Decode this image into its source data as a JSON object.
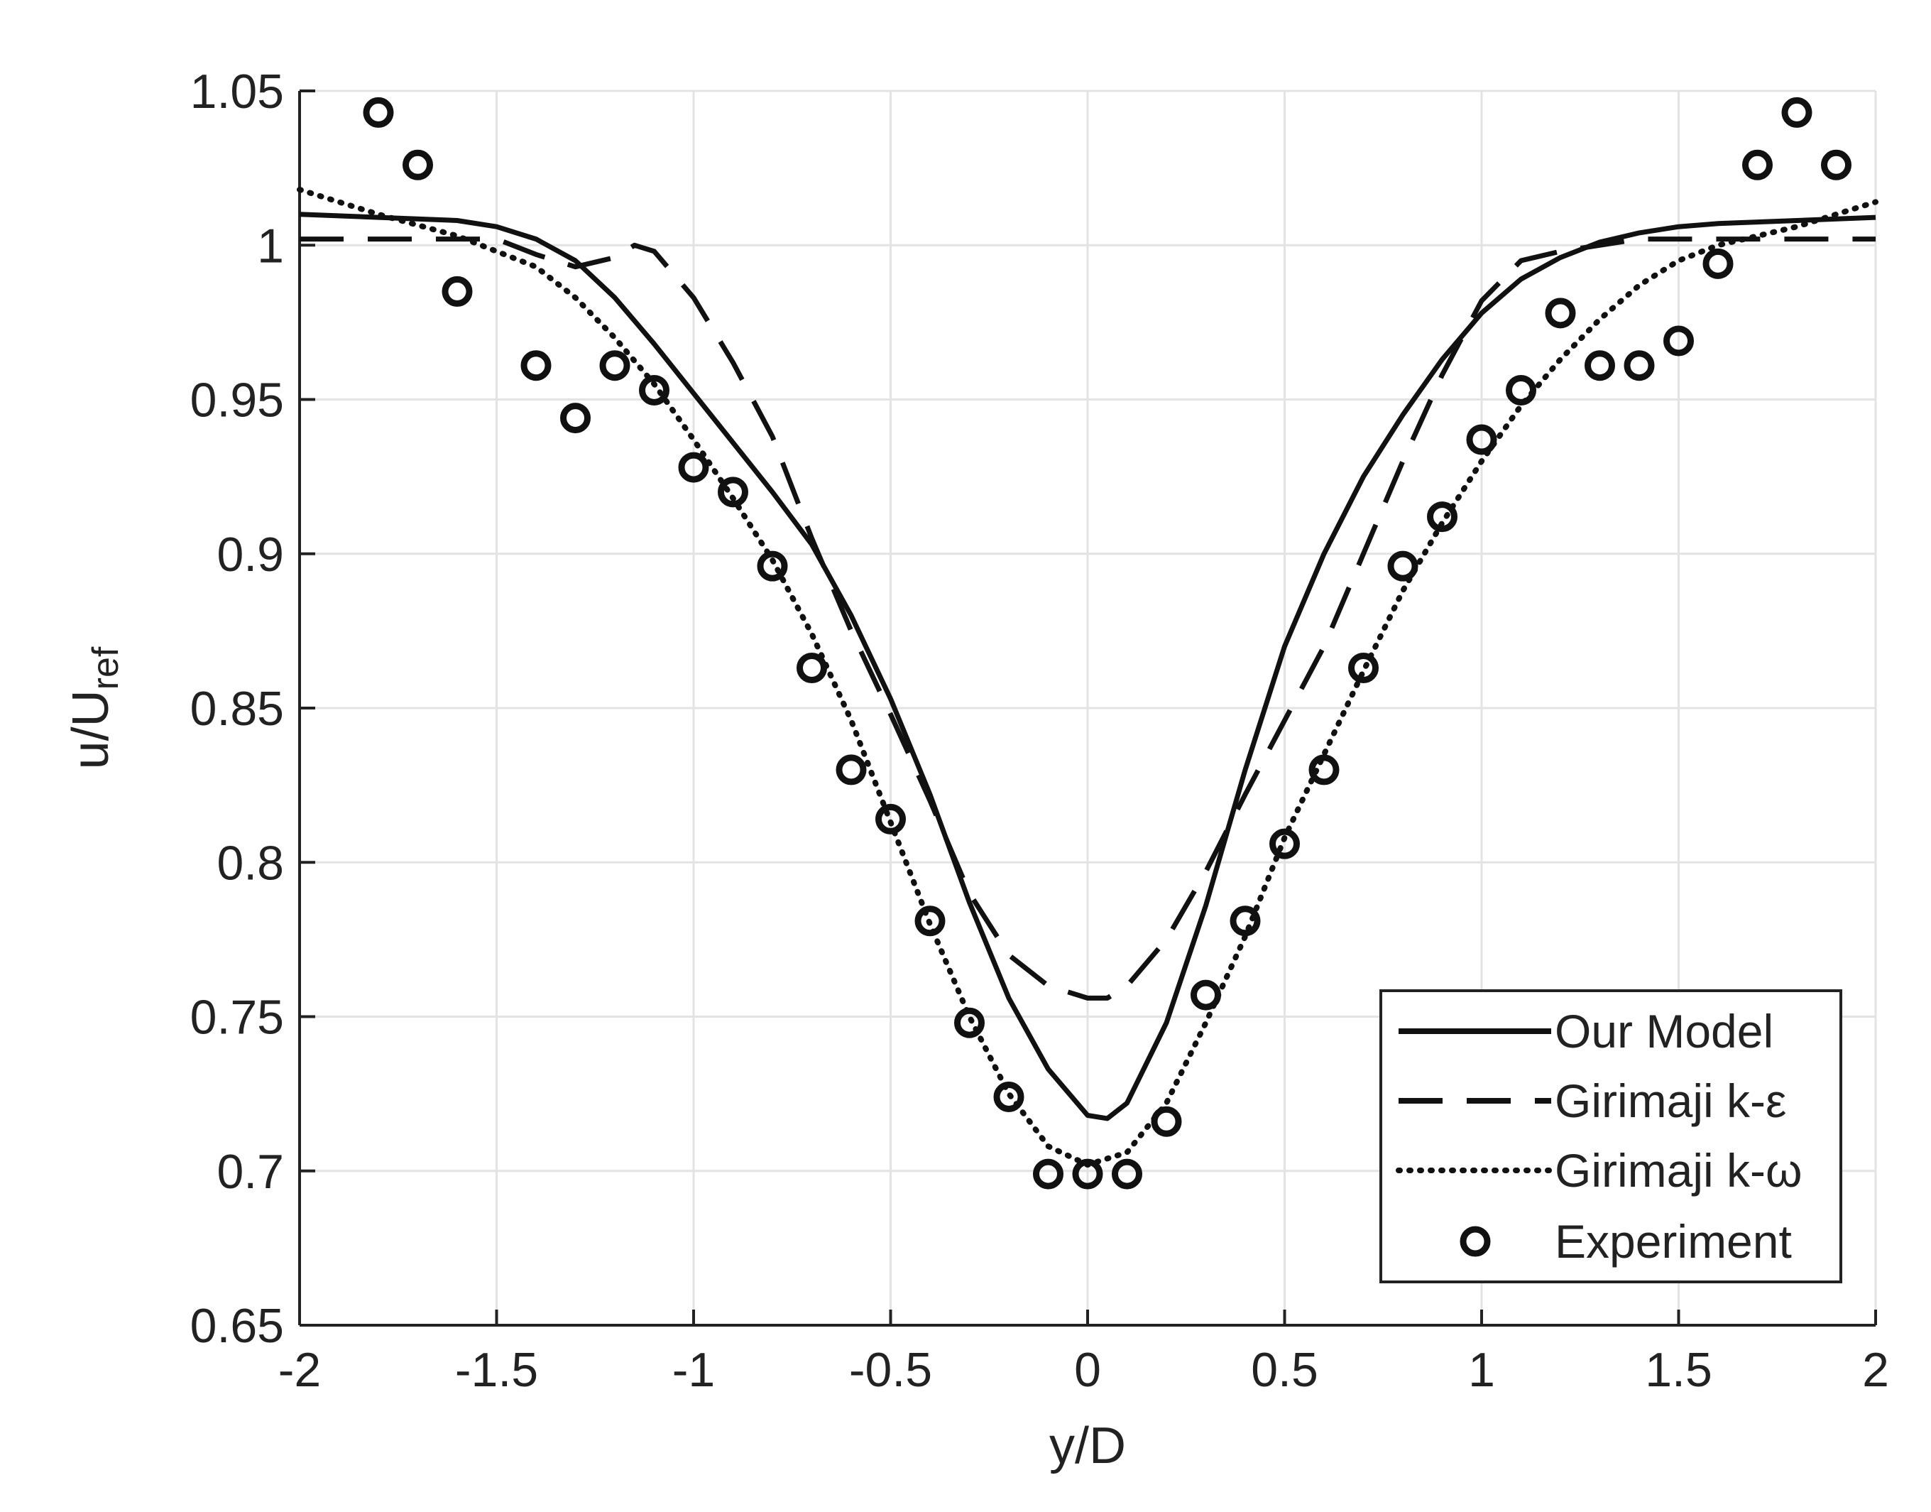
{
  "chart_data": {
    "type": "line",
    "title": "",
    "xlabel": "y/D",
    "ylabel": "u/U",
    "ylabel_subscript": "ref",
    "xlim": [
      -2,
      2
    ],
    "ylim": [
      0.65,
      1.05
    ],
    "grid": true,
    "legend_position": "bottom-right",
    "x_ticks": [
      -2,
      -1.5,
      -1,
      -0.5,
      0,
      0.5,
      1,
      1.5,
      2
    ],
    "x_tick_labels": [
      "-2",
      "-1.5",
      "-1",
      "-0.5",
      "0",
      "0.5",
      "1",
      "1.5",
      "2"
    ],
    "y_ticks": [
      0.65,
      0.7,
      0.75,
      0.8,
      0.85,
      0.9,
      0.95,
      1,
      1.05
    ],
    "y_tick_labels": [
      "0.65",
      "0.7",
      "0.75",
      "0.8",
      "0.85",
      "0.9",
      "0.95",
      "1",
      "1.05"
    ],
    "series": [
      {
        "name": "Our Model",
        "style": "solid",
        "x": [
          -2,
          -1.8,
          -1.6,
          -1.5,
          -1.4,
          -1.3,
          -1.2,
          -1.1,
          -1.0,
          -0.9,
          -0.8,
          -0.7,
          -0.6,
          -0.5,
          -0.4,
          -0.3,
          -0.2,
          -0.1,
          0.0,
          0.05,
          0.1,
          0.2,
          0.3,
          0.4,
          0.5,
          0.6,
          0.7,
          0.8,
          0.9,
          1.0,
          1.1,
          1.2,
          1.3,
          1.4,
          1.5,
          1.6,
          1.8,
          2.0
        ],
        "y": [
          1.01,
          1.009,
          1.008,
          1.006,
          1.002,
          0.995,
          0.983,
          0.968,
          0.952,
          0.936,
          0.92,
          0.903,
          0.88,
          0.853,
          0.822,
          0.787,
          0.756,
          0.733,
          0.718,
          0.717,
          0.722,
          0.748,
          0.786,
          0.83,
          0.87,
          0.9,
          0.925,
          0.945,
          0.963,
          0.978,
          0.989,
          0.996,
          1.001,
          1.004,
          1.006,
          1.007,
          1.008,
          1.009
        ]
      },
      {
        "name": "Girimaji k-ε",
        "style": "dashed",
        "x": [
          -2,
          -1.5,
          -1.4,
          -1.3,
          -1.2,
          -1.15,
          -1.1,
          -1.0,
          -0.9,
          -0.8,
          -0.7,
          -0.6,
          -0.5,
          -0.4,
          -0.3,
          -0.2,
          -0.1,
          0.0,
          0.05,
          0.1,
          0.2,
          0.3,
          0.4,
          0.5,
          0.6,
          0.7,
          0.8,
          0.9,
          1.0,
          1.1,
          1.2,
          1.3,
          1.4,
          1.5,
          2.0
        ],
        "y": [
          1.002,
          1.002,
          0.997,
          0.993,
          0.996,
          1.0,
          0.998,
          0.983,
          0.962,
          0.938,
          0.905,
          0.875,
          0.848,
          0.82,
          0.79,
          0.77,
          0.76,
          0.756,
          0.756,
          0.76,
          0.775,
          0.797,
          0.822,
          0.846,
          0.87,
          0.9,
          0.93,
          0.958,
          0.982,
          0.995,
          0.998,
          1.0,
          1.002,
          1.002,
          1.002
        ]
      },
      {
        "name": "Girimaji k-ω",
        "style": "dotted",
        "x": [
          -2,
          -1.8,
          -1.6,
          -1.4,
          -1.3,
          -1.2,
          -1.1,
          -1.0,
          -0.9,
          -0.8,
          -0.7,
          -0.6,
          -0.5,
          -0.4,
          -0.3,
          -0.2,
          -0.1,
          0.0,
          0.1,
          0.2,
          0.3,
          0.4,
          0.5,
          0.6,
          0.7,
          0.8,
          0.9,
          1.0,
          1.1,
          1.2,
          1.3,
          1.4,
          1.5,
          1.6,
          1.8,
          2.0
        ],
        "y": [
          1.018,
          1.01,
          1.003,
          0.993,
          0.983,
          0.97,
          0.955,
          0.937,
          0.918,
          0.898,
          0.874,
          0.846,
          0.813,
          0.78,
          0.75,
          0.725,
          0.708,
          0.702,
          0.706,
          0.722,
          0.748,
          0.776,
          0.808,
          0.835,
          0.862,
          0.888,
          0.91,
          0.93,
          0.948,
          0.963,
          0.976,
          0.987,
          0.995,
          1.0,
          1.006,
          1.014
        ]
      },
      {
        "name": "Experiment",
        "style": "markers",
        "x": [
          -1.8,
          -1.7,
          -1.6,
          -1.4,
          -1.3,
          -1.2,
          -1.1,
          -1.0,
          -0.9,
          -0.8,
          -0.7,
          -0.6,
          -0.5,
          -0.4,
          -0.3,
          -0.2,
          -0.1,
          0.0,
          0.1,
          0.2,
          0.3,
          0.4,
          0.5,
          0.6,
          0.7,
          0.8,
          0.9,
          1.0,
          1.1,
          1.2,
          1.3,
          1.4,
          1.5,
          1.6,
          1.7,
          1.8,
          1.9
        ],
        "y": [
          1.043,
          1.026,
          0.985,
          0.961,
          0.944,
          0.961,
          0.953,
          0.928,
          0.92,
          0.896,
          0.863,
          0.83,
          0.814,
          0.781,
          0.748,
          0.724,
          0.699,
          0.699,
          0.699,
          0.716,
          0.757,
          0.781,
          0.806,
          0.83,
          0.863,
          0.896,
          0.912,
          0.937,
          0.953,
          0.978,
          0.961,
          0.961,
          0.969,
          0.994,
          1.026,
          1.043,
          1.026
        ]
      }
    ]
  }
}
